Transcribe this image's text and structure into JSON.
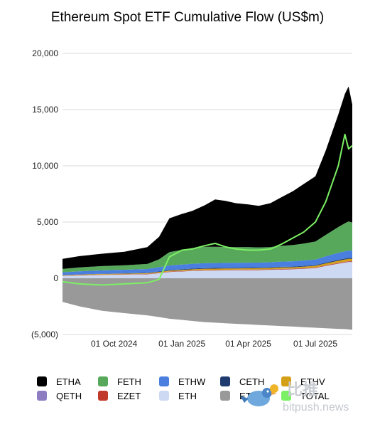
{
  "chart_data": {
    "type": "area",
    "title": "Ethereum Spot ETF Cumulative Flow (US$m)",
    "xlabel": "",
    "ylabel": "",
    "ylim": [
      -5000,
      20000
    ],
    "yticks": [
      "20,000",
      "15,000",
      "10,000",
      "5,000",
      "0",
      "(5,000)"
    ],
    "xticks": [
      "01 Oct 2024",
      "01 Jan 2025",
      "01 Apr 2025",
      "01 Jul 2025"
    ],
    "grid": true,
    "legend_position": "bottom",
    "x": [
      "2024-07-23",
      "2024-08-15",
      "2024-09-15",
      "2024-10-15",
      "2024-11-15",
      "2024-12-01",
      "2024-12-15",
      "2025-01-01",
      "2025-01-15",
      "2025-02-01",
      "2025-02-15",
      "2025-03-01",
      "2025-03-15",
      "2025-04-01",
      "2025-04-15",
      "2025-05-01",
      "2025-05-15",
      "2025-06-01",
      "2025-06-15",
      "2025-07-01",
      "2025-07-15",
      "2025-08-01",
      "2025-08-10",
      "2025-08-15",
      "2025-08-20"
    ],
    "series": [
      {
        "name": "ETHE",
        "color": "#999999",
        "values": [
          -2100,
          -2500,
          -2900,
          -3100,
          -3300,
          -3450,
          -3600,
          -3700,
          -3800,
          -3900,
          -3950,
          -4000,
          -4050,
          -4100,
          -4150,
          -4200,
          -4250,
          -4300,
          -4350,
          -4400,
          -4450,
          -4500,
          -4520,
          -4550,
          -4580
        ]
      },
      {
        "name": "ETH",
        "color": "#cdd9f3",
        "values": [
          200,
          250,
          300,
          320,
          350,
          450,
          550,
          600,
          650,
          680,
          690,
          700,
          710,
          720,
          730,
          750,
          780,
          800,
          850,
          900,
          1100,
          1300,
          1400,
          1450,
          1450
        ]
      },
      {
        "name": "EZET",
        "color": "#c0392b",
        "values": [
          20,
          20,
          25,
          25,
          30,
          30,
          35,
          35,
          35,
          40,
          40,
          40,
          40,
          40,
          40,
          40,
          45,
          45,
          45,
          50,
          50,
          55,
          55,
          55,
          55
        ]
      },
      {
        "name": "QETH",
        "color": "#8e7cc3",
        "values": [
          10,
          10,
          10,
          12,
          12,
          15,
          15,
          15,
          15,
          15,
          15,
          15,
          15,
          15,
          15,
          15,
          15,
          15,
          15,
          15,
          15,
          15,
          15,
          15,
          15
        ]
      },
      {
        "name": "ETHV",
        "color": "#d4a017",
        "values": [
          40,
          45,
          50,
          55,
          60,
          70,
          80,
          90,
          100,
          110,
          110,
          110,
          110,
          110,
          110,
          110,
          120,
          120,
          130,
          140,
          160,
          190,
          200,
          210,
          210
        ]
      },
      {
        "name": "CETH",
        "color": "#1f3a6e",
        "values": [
          10,
          15,
          20,
          25,
          30,
          40,
          50,
          60,
          60,
          60,
          60,
          60,
          60,
          60,
          60,
          60,
          60,
          60,
          60,
          60,
          70,
          80,
          80,
          80,
          80
        ]
      },
      {
        "name": "ETHW",
        "color": "#4a7fe0",
        "values": [
          250,
          280,
          300,
          320,
          340,
          380,
          400,
          420,
          430,
          440,
          440,
          440,
          440,
          440,
          440,
          450,
          460,
          470,
          480,
          500,
          560,
          620,
          640,
          650,
          650
        ]
      },
      {
        "name": "FETH",
        "color": "#57a85a",
        "values": [
          300,
          350,
          380,
          400,
          450,
          700,
          1200,
          1300,
          1400,
          1450,
          1450,
          1420,
          1400,
          1380,
          1350,
          1350,
          1400,
          1450,
          1500,
          1600,
          1900,
          2300,
          2500,
          2600,
          2500
        ]
      },
      {
        "name": "ETHA",
        "color": "#000000",
        "values": [
          900,
          1000,
          1100,
          1200,
          1500,
          2000,
          3000,
          3200,
          3300,
          3700,
          4200,
          4100,
          3900,
          3800,
          3700,
          3900,
          4300,
          4800,
          5300,
          5800,
          7500,
          10000,
          11500,
          12000,
          10500
        ]
      }
    ],
    "total": {
      "name": "TOTAL",
      "color": "#7cf065",
      "values": [
        -300,
        -500,
        -600,
        -500,
        -400,
        -100,
        1900,
        2500,
        2600,
        2900,
        3100,
        2800,
        2600,
        2500,
        2500,
        2600,
        3000,
        3600,
        4100,
        5000,
        6800,
        10000,
        12800,
        11500,
        11800
      ]
    }
  },
  "legend": [
    {
      "label": "ETHA",
      "color": "#000000"
    },
    {
      "label": "FETH",
      "color": "#57a85a"
    },
    {
      "label": "ETHW",
      "color": "#4a7fe0"
    },
    {
      "label": "CETH",
      "color": "#1f3a6e"
    },
    {
      "label": "ETHV",
      "color": "#d4a017"
    },
    {
      "label": "QETH",
      "color": "#8e7cc3"
    },
    {
      "label": "EZET",
      "color": "#c0392b"
    },
    {
      "label": "ETH",
      "color": "#cdd9f3"
    },
    {
      "label": "ETHE",
      "color": "#999999"
    },
    {
      "label": "TOTAL",
      "color": "#7cf065"
    }
  ],
  "watermark": {
    "logo_text": "比推",
    "domain": "bitpush.news"
  }
}
